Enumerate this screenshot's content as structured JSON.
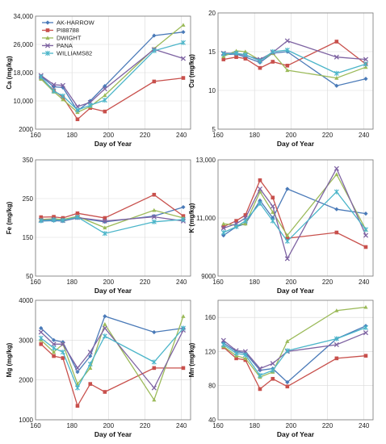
{
  "chart_data": [
    {
      "type": "line",
      "ylabel": "Ca (mg/kg)",
      "xlabel": "Day of Year",
      "xlim": [
        160,
        245
      ],
      "xticks": [
        160,
        180,
        200,
        220,
        240
      ],
      "ylim": [
        2000,
        34000
      ],
      "yticks": [
        2000,
        10000,
        18000,
        26000,
        34000
      ],
      "ytick_labels": [
        "2000",
        "10,000",
        "18,000",
        "26,000",
        "34,000"
      ],
      "grid": true,
      "legend": "top-left",
      "x": [
        163,
        170,
        175,
        183,
        190,
        198,
        225,
        241
      ],
      "series": [
        {
          "name": "AK-HARROW",
          "values": [
            17000,
            14000,
            13800,
            7200,
            10000,
            14200,
            28500,
            29500
          ]
        },
        {
          "name": "PI88788",
          "values": [
            16500,
            13000,
            11000,
            4800,
            8000,
            7000,
            15500,
            16500
          ]
        },
        {
          "name": "DWIGHT",
          "values": [
            16200,
            12600,
            10400,
            6800,
            8400,
            11600,
            24800,
            31500
          ]
        },
        {
          "name": "PANA",
          "values": [
            17200,
            14600,
            14400,
            8400,
            9600,
            13400,
            24600,
            22000
          ]
        },
        {
          "name": "WILLIAMS82",
          "values": [
            16800,
            12800,
            11400,
            7400,
            8800,
            10200,
            24200,
            26500
          ]
        }
      ]
    },
    {
      "type": "line",
      "ylabel": "Cu (mg/kg)",
      "xlabel": "Day of Year",
      "xlim": [
        160,
        245
      ],
      "xticks": [
        160,
        180,
        200,
        220,
        240
      ],
      "ylim": [
        5,
        20
      ],
      "yticks": [
        5,
        10,
        15,
        20
      ],
      "ytick_labels": [
        "5",
        "10",
        "15",
        "20"
      ],
      "grid": true,
      "x": [
        163,
        170,
        175,
        183,
        190,
        198,
        225,
        241
      ],
      "series": [
        {
          "name": "AK-HARROW",
          "values": [
            14.6,
            14.7,
            14.3,
            13.6,
            14.8,
            15.0,
            10.6,
            11.5
          ]
        },
        {
          "name": "PI88788",
          "values": [
            14.0,
            14.3,
            14.1,
            12.9,
            13.7,
            13.2,
            16.3,
            13.4
          ]
        },
        {
          "name": "DWIGHT",
          "values": [
            14.4,
            15.1,
            15.0,
            13.9,
            14.8,
            12.6,
            11.6,
            13.0
          ]
        },
        {
          "name": "PANA",
          "values": [
            14.8,
            14.8,
            14.5,
            14.0,
            14.9,
            16.4,
            14.3,
            14.0
          ]
        },
        {
          "name": "WILLIAMS82",
          "values": [
            14.7,
            14.8,
            14.6,
            13.8,
            15.0,
            15.2,
            12.2,
            13.4
          ]
        }
      ]
    },
    {
      "type": "line",
      "ylabel": "Fe (mg/kg)",
      "xlabel": "Day of Year",
      "xlim": [
        160,
        245
      ],
      "xticks": [
        160,
        180,
        200,
        220,
        240
      ],
      "ylim": [
        50,
        350
      ],
      "yticks": [
        50,
        150,
        250,
        350
      ],
      "ytick_labels": [
        "50",
        "150",
        "250",
        "350"
      ],
      "grid": true,
      "x": [
        163,
        170,
        175,
        183,
        198,
        225,
        241
      ],
      "series": [
        {
          "name": "AK-HARROW",
          "values": [
            192,
            193,
            192,
            200,
            190,
            205,
            228
          ]
        },
        {
          "name": "PI88788",
          "values": [
            202,
            203,
            200,
            212,
            200,
            260,
            205
          ]
        },
        {
          "name": "DWIGHT",
          "values": [
            196,
            198,
            196,
            204,
            175,
            220,
            200
          ]
        },
        {
          "name": "PANA",
          "values": [
            194,
            196,
            193,
            201,
            192,
            203,
            192
          ]
        },
        {
          "name": "WILLIAMS82",
          "values": [
            193,
            195,
            194,
            202,
            160,
            190,
            196
          ]
        }
      ]
    },
    {
      "type": "line",
      "ylabel": "K (mg/kg)",
      "xlabel": "Day of Year",
      "xlim": [
        160,
        245
      ],
      "xticks": [
        160,
        180,
        200,
        220,
        240
      ],
      "ylim": [
        9000,
        13000
      ],
      "yticks": [
        9000,
        11000,
        13000
      ],
      "ytick_labels": [
        "9000",
        "11,000",
        "13,000"
      ],
      "grid": true,
      "x": [
        163,
        170,
        175,
        183,
        190,
        198,
        225,
        241
      ],
      "series": [
        {
          "name": "AK-HARROW",
          "values": [
            10400,
            10700,
            10800,
            11600,
            11000,
            12000,
            11300,
            11150
          ]
        },
        {
          "name": "PI88788",
          "values": [
            10700,
            10900,
            11100,
            12300,
            11700,
            10300,
            10500,
            10000
          ]
        },
        {
          "name": "DWIGHT",
          "values": [
            10800,
            10750,
            10800,
            11900,
            11200,
            10400,
            12500,
            10600
          ]
        },
        {
          "name": "PANA",
          "values": [
            10650,
            10800,
            11000,
            12000,
            11400,
            9600,
            12700,
            10400
          ]
        },
        {
          "name": "WILLIAMS82",
          "values": [
            10500,
            10700,
            10900,
            11500,
            10900,
            10200,
            11900,
            10600
          ]
        }
      ]
    },
    {
      "type": "line",
      "ylabel": "Mg (mg/kg)",
      "xlabel": "Day of Year",
      "xlim": [
        160,
        245
      ],
      "xticks": [
        160,
        180,
        200,
        220,
        240
      ],
      "ylim": [
        1000,
        4000
      ],
      "yticks": [
        1000,
        2000,
        3000,
        4000
      ],
      "ytick_labels": [
        "1000",
        "2000",
        "3000",
        "4000"
      ],
      "grid": true,
      "x": [
        163,
        170,
        175,
        183,
        190,
        198,
        225,
        241
      ],
      "series": [
        {
          "name": "AK-HARROW",
          "values": [
            3300,
            3000,
            2950,
            2200,
            2600,
            3600,
            3200,
            3300
          ]
        },
        {
          "name": "PI88788",
          "values": [
            2900,
            2600,
            2550,
            1350,
            1900,
            1700,
            2300,
            2300
          ]
        },
        {
          "name": "DWIGHT",
          "values": [
            3000,
            2700,
            2900,
            1900,
            2300,
            3400,
            1500,
            3600
          ]
        },
        {
          "name": "PANA",
          "values": [
            3200,
            2900,
            2900,
            2300,
            2700,
            3300,
            1800,
            3250
          ]
        },
        {
          "name": "WILLIAMS82",
          "values": [
            3050,
            2800,
            2700,
            1800,
            2400,
            3100,
            2450,
            3300
          ]
        }
      ]
    },
    {
      "type": "line",
      "ylabel": "Mn (mg/kg)",
      "xlabel": "Day of Year",
      "xlim": [
        160,
        245
      ],
      "xticks": [
        160,
        180,
        200,
        220,
        240
      ],
      "ylim": [
        40,
        180
      ],
      "yticks": [
        40,
        80,
        120,
        160
      ],
      "ytick_labels": [
        "40",
        "80",
        "120",
        "160"
      ],
      "grid": true,
      "x": [
        163,
        170,
        175,
        183,
        190,
        198,
        225,
        241
      ],
      "series": [
        {
          "name": "AK-HARROW",
          "values": [
            130,
            120,
            118,
            98,
            100,
            84,
            135,
            150
          ]
        },
        {
          "name": "PI88788",
          "values": [
            125,
            112,
            110,
            76,
            88,
            79,
            112,
            115
          ]
        },
        {
          "name": "DWIGHT",
          "values": [
            126,
            115,
            112,
            90,
            96,
            132,
            168,
            172
          ]
        },
        {
          "name": "PANA",
          "values": [
            133,
            121,
            120,
            100,
            106,
            120,
            128,
            142
          ]
        },
        {
          "name": "WILLIAMS82",
          "values": [
            128,
            118,
            116,
            92,
            98,
            121,
            135,
            148
          ]
        }
      ]
    }
  ],
  "colors": {
    "AK-HARROW": "#4a7ab8",
    "PI88788": "#c8504c",
    "DWIGHT": "#9bba59",
    "PANA": "#7e63a2",
    "WILLIAMS82": "#4bb5c9"
  },
  "markers": {
    "AK-HARROW": "diamond",
    "PI88788": "square",
    "DWIGHT": "triangle",
    "PANA": "x",
    "WILLIAMS82": "star"
  }
}
